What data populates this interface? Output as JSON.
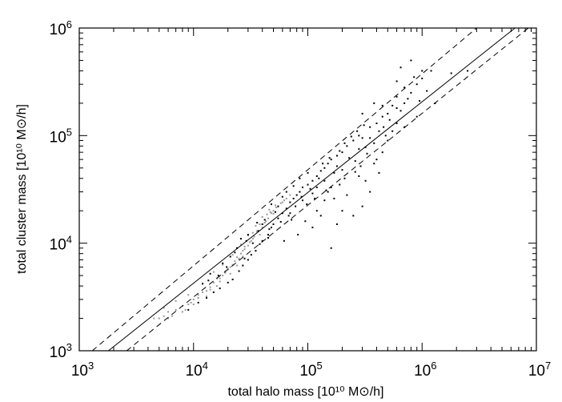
{
  "chart_data": {
    "type": "scatter",
    "title": "",
    "xlabel": "total halo mass [10¹⁰ M⊙/h]",
    "ylabel": "total cluster mass [10¹⁰ M⊙/h]",
    "xscale": "log",
    "yscale": "log",
    "xlim": [
      1000,
      10000000
    ],
    "ylim": [
      1000,
      1000000
    ],
    "x_ticks": [
      {
        "value": 1000,
        "base": "10",
        "exp": "3"
      },
      {
        "value": 10000,
        "base": "10",
        "exp": "4"
      },
      {
        "value": 100000,
        "base": "10",
        "exp": "5"
      },
      {
        "value": 1000000,
        "base": "10",
        "exp": "6"
      },
      {
        "value": 10000000,
        "base": "10",
        "exp": "7"
      }
    ],
    "y_ticks": [
      {
        "value": 1000,
        "base": "10",
        "exp": "3"
      },
      {
        "value": 10000,
        "base": "10",
        "exp": "4"
      },
      {
        "value": 100000,
        "base": "10",
        "exp": "5"
      },
      {
        "value": 1000000,
        "base": "10",
        "exp": "6"
      }
    ],
    "grid": false,
    "legend": "none",
    "lines": [
      {
        "style": "solid",
        "color": "#000000",
        "x": [
          1800,
          6500000
        ],
        "y": [
          1000,
          1000000
        ]
      },
      {
        "style": "dashed",
        "color": "#000000",
        "x": [
          1300,
          3000000
        ],
        "y": [
          1000,
          1000000
        ]
      },
      {
        "style": "dashed",
        "color": "#000000",
        "x": [
          2600,
          8500000
        ],
        "y": [
          1000,
          1000000
        ]
      }
    ],
    "series": [
      {
        "color": "#999999",
        "points": [
          [
            4500,
            2000
          ],
          [
            5000,
            2000
          ],
          [
            5500,
            2100
          ],
          [
            6000,
            2300
          ],
          [
            6500,
            2100
          ],
          [
            7000,
            2400
          ],
          [
            8000,
            2600
          ],
          [
            8500,
            2400
          ],
          [
            9000,
            2700
          ],
          [
            10000,
            3000
          ],
          [
            11000,
            3300
          ],
          [
            12000,
            3500
          ],
          [
            13000,
            3200
          ],
          [
            14000,
            3900
          ],
          [
            15000,
            4300
          ],
          [
            16000,
            4000
          ],
          [
            17000,
            4700
          ],
          [
            18000,
            5000
          ],
          [
            19000,
            5300
          ],
          [
            20000,
            5800
          ],
          [
            21000,
            5200
          ],
          [
            22000,
            6300
          ],
          [
            23000,
            6800
          ],
          [
            24000,
            6200
          ],
          [
            25000,
            7200
          ],
          [
            26000,
            8000
          ],
          [
            27000,
            7500
          ],
          [
            28000,
            8800
          ],
          [
            30000,
            9500
          ],
          [
            32000,
            10500
          ],
          [
            34000,
            11500
          ],
          [
            36000,
            13000
          ],
          [
            38000,
            12000
          ],
          [
            40000,
            14000
          ],
          [
            42000,
            15500
          ],
          [
            45000,
            17000
          ],
          [
            48000,
            19000
          ],
          [
            50000,
            20000
          ],
          [
            55000,
            22000
          ],
          [
            60000,
            24000
          ],
          [
            5500,
            2500
          ],
          [
            7000,
            2900
          ],
          [
            9000,
            3300
          ],
          [
            12000,
            4200
          ],
          [
            15000,
            5400
          ],
          [
            18000,
            6300
          ],
          [
            22000,
            7800
          ],
          [
            26000,
            9700
          ],
          [
            30000,
            11800
          ],
          [
            35000,
            14500
          ],
          [
            40000,
            17500
          ],
          [
            46000,
            20500
          ],
          [
            8000,
            2300
          ],
          [
            10000,
            2700
          ],
          [
            13000,
            3600
          ],
          [
            16000,
            4700
          ],
          [
            20000,
            5700
          ],
          [
            24000,
            7400
          ],
          [
            28000,
            9300
          ],
          [
            33000,
            12500
          ],
          [
            38000,
            15000
          ],
          [
            44000,
            18500
          ],
          [
            52000,
            22500
          ],
          [
            6000,
            2000
          ],
          [
            11000,
            3100
          ],
          [
            14000,
            3700
          ],
          [
            17000,
            4400
          ],
          [
            21000,
            6000
          ],
          [
            25000,
            7100
          ],
          [
            31000,
            10200
          ],
          [
            36000,
            12800
          ],
          [
            43000,
            16000
          ],
          [
            50000,
            18800
          ],
          [
            58000,
            23500
          ],
          [
            65000,
            26000
          ],
          [
            70000,
            28000
          ],
          [
            9500,
            2800
          ],
          [
            19000,
            5500
          ],
          [
            27000,
            8500
          ],
          [
            33000,
            11000
          ],
          [
            47000,
            19500
          ],
          [
            53000,
            21500
          ],
          [
            62000,
            25000
          ]
        ]
      },
      {
        "color": "#000000",
        "points": [
          [
            9000,
            2400
          ],
          [
            11000,
            2800
          ],
          [
            13000,
            3100
          ],
          [
            15000,
            3500
          ],
          [
            17000,
            3800
          ],
          [
            20000,
            4300
          ],
          [
            22000,
            4600
          ],
          [
            25000,
            5500
          ],
          [
            27000,
            6200
          ],
          [
            30000,
            7000
          ],
          [
            32000,
            7800
          ],
          [
            35000,
            8500
          ],
          [
            38000,
            9800
          ],
          [
            40000,
            10500
          ],
          [
            45000,
            12000
          ],
          [
            48000,
            14000
          ],
          [
            50000,
            15000
          ],
          [
            55000,
            17000
          ],
          [
            60000,
            19000
          ],
          [
            65000,
            21000
          ],
          [
            70000,
            24000
          ],
          [
            75000,
            26000
          ],
          [
            80000,
            28000
          ],
          [
            85000,
            30000
          ],
          [
            90000,
            33000
          ],
          [
            100000,
            35000
          ],
          [
            110000,
            38000
          ],
          [
            120000,
            42000
          ],
          [
            130000,
            47000
          ],
          [
            140000,
            50000
          ],
          [
            150000,
            55000
          ],
          [
            160000,
            60000
          ],
          [
            180000,
            65000
          ],
          [
            200000,
            70000
          ],
          [
            220000,
            80000
          ],
          [
            250000,
            90000
          ],
          [
            280000,
            100000
          ],
          [
            300000,
            95000
          ],
          [
            350000,
            120000
          ],
          [
            400000,
            130000
          ],
          [
            450000,
            150000
          ],
          [
            500000,
            160000
          ],
          [
            600000,
            180000
          ],
          [
            700000,
            200000
          ],
          [
            800000,
            250000
          ],
          [
            700000,
            280000
          ],
          [
            600000,
            320000
          ],
          [
            900000,
            300000
          ],
          [
            1000000,
            340000
          ],
          [
            30000,
            12000
          ],
          [
            40000,
            15000
          ],
          [
            55000,
            22000
          ],
          [
            65000,
            30000
          ],
          [
            70000,
            19000
          ],
          [
            90000,
            25000
          ],
          [
            100000,
            45000
          ],
          [
            110000,
            29000
          ],
          [
            120000,
            33000
          ],
          [
            140000,
            38000
          ],
          [
            150000,
            30000
          ],
          [
            170000,
            45000
          ],
          [
            180000,
            52000
          ],
          [
            200000,
            48000
          ],
          [
            230000,
            62000
          ],
          [
            260000,
            58000
          ],
          [
            280000,
            75000
          ],
          [
            320000,
            78000
          ],
          [
            350000,
            95000
          ],
          [
            380000,
            85000
          ],
          [
            420000,
            110000
          ],
          [
            460000,
            120000
          ],
          [
            520000,
            140000
          ],
          [
            300000,
            22000
          ],
          [
            250000,
            18000
          ],
          [
            180000,
            15000
          ],
          [
            160000,
            9000
          ],
          [
            200000,
            20000
          ],
          [
            350000,
            30000
          ],
          [
            280000,
            42000
          ],
          [
            400000,
            60000
          ],
          [
            140000,
            25000
          ],
          [
            120000,
            20000
          ],
          [
            95000,
            16000
          ],
          [
            85000,
            40000
          ],
          [
            75000,
            34000
          ],
          [
            60000,
            27000
          ],
          [
            48000,
            23000
          ],
          [
            36000,
            15500
          ],
          [
            26000,
            11000
          ],
          [
            18000,
            6500
          ],
          [
            14000,
            5200
          ],
          [
            12000,
            4200
          ],
          [
            21000,
            7500
          ],
          [
            23000,
            8200
          ],
          [
            33000,
            10000
          ],
          [
            42000,
            16500
          ],
          [
            52000,
            19500
          ],
          [
            68000,
            18000
          ],
          [
            78000,
            22000
          ],
          [
            88000,
            27000
          ],
          [
            105000,
            32000
          ],
          [
            125000,
            40000
          ],
          [
            135000,
            55000
          ],
          [
            155000,
            62000
          ],
          [
            190000,
            72000
          ],
          [
            210000,
            85000
          ],
          [
            240000,
            98000
          ],
          [
            270000,
            110000
          ],
          [
            310000,
            125000
          ],
          [
            600000,
            230000
          ],
          [
            550000,
            190000
          ],
          [
            650000,
            170000
          ],
          [
            750000,
            220000
          ],
          [
            850000,
            350000
          ],
          [
            500000,
            90000
          ],
          [
            420000,
            45000
          ],
          [
            450000,
            70000
          ],
          [
            380000,
            55000
          ],
          [
            320000,
            38000
          ],
          [
            220000,
            28000
          ],
          [
            190000,
            35000
          ],
          [
            170000,
            26000
          ],
          [
            130000,
            18000
          ],
          [
            110000,
            14000
          ],
          [
            82000,
            12000
          ],
          [
            62000,
            10500
          ],
          [
            45000,
            11200
          ],
          [
            28000,
            7200
          ],
          [
            24000,
            9000
          ],
          [
            1200000,
            400000
          ],
          [
            1100000,
            260000
          ],
          [
            950000,
            210000
          ],
          [
            550000,
            110000
          ],
          [
            600000,
            130000
          ],
          [
            480000,
            100000
          ],
          [
            330000,
            68000
          ],
          [
            290000,
            52000
          ],
          [
            260000,
            46000
          ],
          [
            210000,
            40000
          ],
          [
            160000,
            33000
          ],
          [
            145000,
            31000
          ],
          [
            115000,
            26000
          ],
          [
            98000,
            23000
          ],
          [
            72000,
            16500
          ],
          [
            58000,
            15800
          ],
          [
            46000,
            13500
          ],
          [
            37000,
            13000
          ],
          [
            29000,
            10500
          ],
          [
            19500,
            6000
          ],
          [
            16500,
            5000
          ],
          [
            13500,
            4500
          ],
          [
            1000000,
            400000
          ],
          [
            1800000,
            380000
          ],
          [
            2500000,
            400000
          ],
          [
            800000,
            500000
          ],
          [
            650000,
            430000
          ],
          [
            900000,
            150000
          ],
          [
            700000,
            120000
          ],
          [
            1300000,
            200000
          ],
          [
            380000,
            200000
          ],
          [
            450000,
            190000
          ],
          [
            300000,
            160000
          ]
        ]
      }
    ]
  }
}
